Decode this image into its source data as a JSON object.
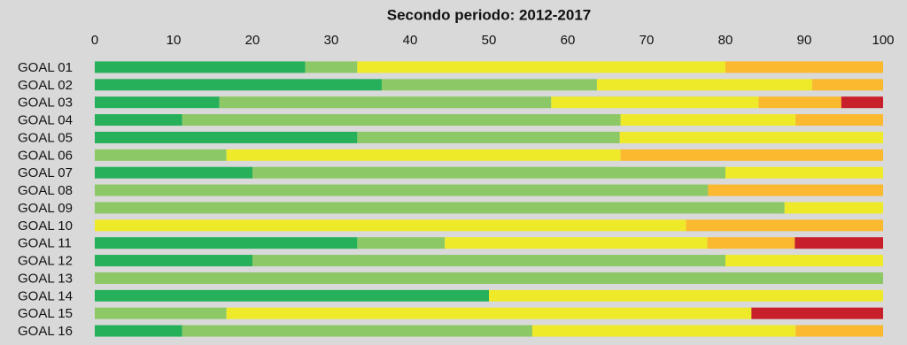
{
  "chart_data": {
    "type": "stacked-hbar",
    "title": "Secondo periodo: 2012-2017",
    "categories": [
      "GOAL 01",
      "GOAL 02",
      "GOAL 03",
      "GOAL 04",
      "GOAL 05",
      "GOAL 06",
      "GOAL 07",
      "GOAL 08",
      "GOAL 09",
      "GOAL 10",
      "GOAL 11",
      "GOAL 12",
      "GOAL 13",
      "GOAL 14",
      "GOAL 15",
      "GOAL 16"
    ],
    "series": [
      {
        "color": "#27b05a",
        "values": [
          26.7,
          36.4,
          15.8,
          11.1,
          33.3,
          0,
          20,
          0,
          0,
          0,
          33.3,
          20,
          0,
          50,
          0,
          11.1
        ]
      },
      {
        "color": "#8cc866",
        "values": [
          6.6,
          27.3,
          42.1,
          55.6,
          33.3,
          16.7,
          60,
          77.8,
          87.5,
          0,
          11.1,
          60,
          100,
          0,
          16.7,
          44.4
        ]
      },
      {
        "color": "#eeea2a",
        "values": [
          46.7,
          27.3,
          26.3,
          22.2,
          33.4,
          50,
          20,
          0,
          12.5,
          75,
          33.3,
          20,
          0,
          50,
          66.6,
          33.4
        ]
      },
      {
        "color": "#fbb930",
        "values": [
          20,
          9,
          10.5,
          11.1,
          0,
          33.3,
          0,
          22.2,
          0,
          25,
          11.1,
          0,
          0,
          0,
          0,
          11.1
        ]
      },
      {
        "color": "#c8202a",
        "values": [
          0,
          0,
          5.3,
          0,
          0,
          0,
          0,
          0,
          0,
          0,
          11.2,
          0,
          0,
          0,
          16.7,
          0
        ]
      }
    ],
    "xlim": [
      0,
      100
    ],
    "xticks": [
      0,
      10,
      20,
      30,
      40,
      50,
      60,
      70,
      80,
      90,
      100
    ]
  }
}
